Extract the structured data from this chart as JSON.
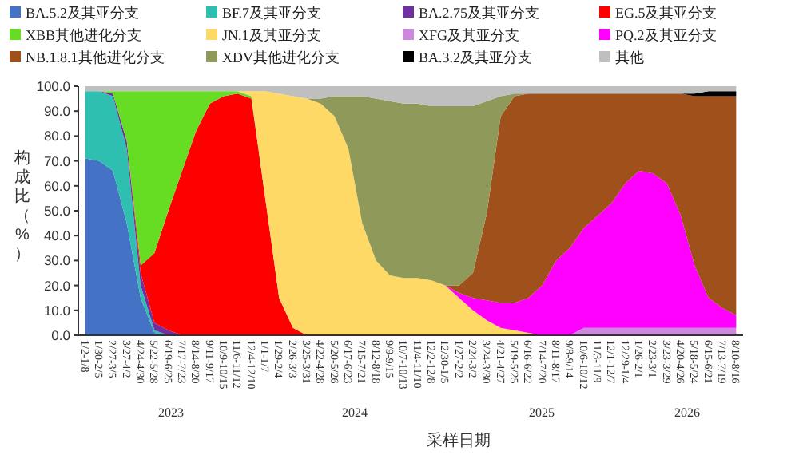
{
  "chart_data": {
    "type": "area",
    "stacked": true,
    "legend": "top",
    "ylabel": "构成比（%）",
    "xlabel": "采样日期",
    "ylim": [
      0,
      100
    ],
    "yticks": [
      {
        "value": 0,
        "label": "0.0"
      },
      {
        "value": 10,
        "label": "10.0"
      },
      {
        "value": 20,
        "label": "20.0"
      },
      {
        "value": 30,
        "label": "30.0"
      },
      {
        "value": 40,
        "label": "40.0"
      },
      {
        "value": 50,
        "label": "50.0"
      },
      {
        "value": 60,
        "label": "60.0"
      },
      {
        "value": 70,
        "label": "70.0"
      },
      {
        "value": 80,
        "label": "80.0"
      },
      {
        "value": 90,
        "label": "90.0"
      },
      {
        "value": 100,
        "label": "100.0"
      }
    ],
    "categories": [
      "1/2-1/8",
      "1/30-2/5",
      "2/27-3/5",
      "3/27-4/2",
      "4/24-4/30",
      "5/22-5/28",
      "6/19-6/25",
      "7/17-7/23",
      "8/14-8/20",
      "9/11-9/17",
      "10/9-10/15",
      "11/6-11/12",
      "12/4-12/10",
      "1/1-1/7",
      "1/29-2/4",
      "2/26-3/3",
      "3/25-3/31",
      "4/22-4/28",
      "5/20-5/26",
      "6/17-6/23",
      "7/15-7/21",
      "8/12-8/18",
      "9/9-9/15",
      "10/7-10/13",
      "11/4-11/10",
      "12/2-12/8",
      "12/30-1/5",
      "1/27-2/2",
      "2/24-3/2",
      "3/24-3/30",
      "4/21-4/27",
      "5/19-5/25",
      "6/16-6/22",
      "7/14-7/20",
      "8/11-8/17",
      "9/8-9/14",
      "10/6-10/12",
      "11/3-11/9",
      "12/1-12/7",
      "12/29-1/4",
      "1/26-2/1",
      "2/23-3/1",
      "3/23-3/29",
      "4/20-4/26",
      "5/18-5/24",
      "6/15-6/21",
      "7/13-7/19",
      "8/10-8/16"
    ],
    "series": [
      {
        "name": "BA.5.2及其亚分支",
        "color": "#4472c4",
        "values": [
          71,
          70,
          66,
          45,
          15,
          1,
          0,
          null,
          null,
          null,
          null,
          null,
          null,
          null,
          null,
          null,
          null,
          null,
          null,
          null,
          null,
          null,
          null,
          null,
          null,
          null,
          null,
          null,
          null,
          null,
          null,
          null,
          null,
          null,
          null,
          null,
          null,
          null,
          null,
          null,
          null,
          null,
          null,
          null,
          null,
          null,
          null,
          null
        ]
      },
      {
        "name": "BF.7及其亚分支",
        "color": "#2ebfb0",
        "values": [
          27,
          28,
          30,
          30,
          5,
          1,
          0,
          null,
          null,
          null,
          null,
          null,
          null,
          null,
          null,
          null,
          null,
          null,
          null,
          null,
          null,
          null,
          null,
          null,
          null,
          null,
          null,
          null,
          null,
          null,
          null,
          null,
          null,
          null,
          null,
          null,
          null,
          null,
          null,
          null,
          null,
          null,
          null,
          null,
          null,
          null,
          null,
          null
        ]
      },
      {
        "name": "BA.2.75及其亚分支",
        "color": "#7030a0",
        "values": [
          null,
          0,
          1,
          3,
          5,
          3,
          2,
          0,
          null,
          null,
          null,
          null,
          null,
          null,
          null,
          null,
          null,
          null,
          null,
          null,
          null,
          null,
          null,
          null,
          null,
          null,
          null,
          null,
          null,
          null,
          null,
          null,
          null,
          null,
          null,
          null,
          null,
          null,
          null,
          null,
          null,
          null,
          null,
          null,
          null,
          null,
          null,
          null
        ]
      },
      {
        "name": "EG.5及其亚分支",
        "color": "#ff0000",
        "values": [
          null,
          null,
          null,
          0,
          3,
          28,
          48,
          66,
          82,
          93,
          96,
          97,
          95,
          55,
          15,
          3,
          0,
          null,
          null,
          null,
          null,
          null,
          null,
          null,
          null,
          null,
          null,
          null,
          null,
          null,
          null,
          null,
          null,
          null,
          null,
          null,
          null,
          null,
          null,
          null,
          null,
          null,
          null,
          null,
          null,
          null,
          null,
          null
        ]
      },
      {
        "name": "XBB其他进化分支",
        "color": "#66dd22",
        "values": [
          null,
          0,
          1,
          20,
          70,
          65,
          48,
          32,
          16,
          5,
          2,
          1,
          1,
          0,
          null,
          null,
          null,
          null,
          null,
          null,
          null,
          null,
          null,
          null,
          null,
          null,
          null,
          null,
          null,
          null,
          null,
          null,
          null,
          null,
          null,
          null,
          null,
          null,
          null,
          null,
          null,
          null,
          null,
          null,
          null,
          null,
          null,
          null
        ]
      },
      {
        "name": "JN.1及其亚分支",
        "color": "#ffd966",
        "values": [
          null,
          null,
          null,
          null,
          null,
          null,
          null,
          null,
          null,
          null,
          null,
          0,
          2,
          43,
          82,
          93,
          95,
          93,
          88,
          75,
          45,
          30,
          24,
          23,
          23,
          22,
          20,
          15,
          10,
          6,
          3,
          2,
          1,
          0,
          null,
          null,
          null,
          null,
          null,
          null,
          null,
          null,
          null,
          null,
          null,
          null,
          null,
          null
        ]
      },
      {
        "name": "XFG及其亚分支",
        "color": "#cc88dd",
        "values": [
          null,
          null,
          null,
          null,
          null,
          null,
          null,
          null,
          null,
          null,
          null,
          null,
          null,
          null,
          null,
          null,
          null,
          null,
          null,
          null,
          null,
          null,
          null,
          null,
          null,
          null,
          null,
          null,
          null,
          null,
          null,
          null,
          null,
          null,
          null,
          0,
          3,
          3,
          3,
          3,
          3,
          3,
          3,
          3,
          3,
          3,
          3,
          3
        ]
      },
      {
        "name": "PQ.2及其亚分支",
        "color": "#ff00ff",
        "values": [
          null,
          null,
          null,
          null,
          null,
          null,
          null,
          null,
          null,
          null,
          null,
          null,
          null,
          null,
          null,
          null,
          null,
          null,
          null,
          null,
          null,
          null,
          null,
          null,
          null,
          null,
          0,
          2,
          5,
          8,
          10,
          11,
          14,
          20,
          30,
          35,
          40,
          45,
          50,
          58,
          63,
          62,
          58,
          45,
          25,
          12,
          8,
          5
        ]
      },
      {
        "name": "NB.1.8.1其他进化分支",
        "color": "#a0501a",
        "values": [
          null,
          null,
          null,
          null,
          null,
          null,
          null,
          null,
          null,
          null,
          null,
          null,
          null,
          null,
          null,
          null,
          null,
          null,
          null,
          null,
          null,
          null,
          null,
          null,
          null,
          null,
          0,
          3,
          10,
          35,
          75,
          83,
          82,
          77,
          67,
          62,
          54,
          49,
          44,
          36,
          31,
          32,
          36,
          49,
          68,
          81,
          85,
          88
        ]
      },
      {
        "name": "XDV其他进化分支",
        "color": "#8f9a5a",
        "values": [
          null,
          null,
          null,
          null,
          null,
          null,
          null,
          null,
          null,
          null,
          null,
          null,
          null,
          null,
          null,
          null,
          0,
          2,
          8,
          21,
          51,
          65,
          70,
          70,
          70,
          70,
          72,
          72,
          67,
          45,
          8,
          1,
          0,
          null,
          null,
          null,
          null,
          null,
          null,
          null,
          null,
          null,
          null,
          null,
          null,
          null,
          null,
          null
        ]
      },
      {
        "name": "BA.3.2及其亚分支",
        "color": "#000000",
        "values": [
          null,
          null,
          null,
          null,
          null,
          null,
          null,
          null,
          null,
          null,
          null,
          null,
          null,
          null,
          null,
          null,
          null,
          null,
          null,
          null,
          null,
          null,
          null,
          null,
          null,
          null,
          null,
          null,
          null,
          null,
          null,
          null,
          null,
          null,
          null,
          null,
          null,
          null,
          null,
          null,
          null,
          null,
          null,
          0,
          1,
          2,
          2,
          2
        ]
      },
      {
        "name": "其他",
        "color": "#bfbfbf",
        "values": [
          2,
          2,
          2,
          2,
          2,
          2,
          2,
          2,
          2,
          2,
          2,
          2,
          2,
          2,
          3,
          4,
          5,
          5,
          4,
          4,
          4,
          5,
          6,
          7,
          7,
          8,
          8,
          8,
          8,
          6,
          4,
          3,
          3,
          3,
          3,
          3,
          3,
          3,
          3,
          3,
          3,
          3,
          3,
          3,
          3,
          2,
          2,
          2
        ]
      }
    ],
    "annotations": [
      "2023",
      "2024",
      "2025",
      "2026"
    ]
  }
}
